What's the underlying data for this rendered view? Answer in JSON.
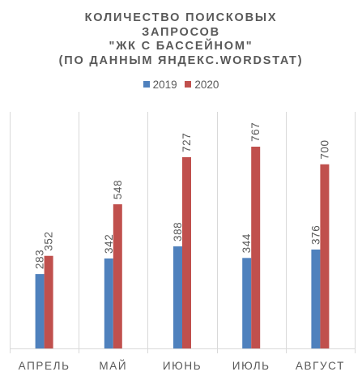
{
  "chart_data": {
    "type": "bar",
    "title_lines": [
      "КОЛИЧЕСТВО ПОИСКОВЫХ",
      "ЗАПРОСОВ",
      "\"ЖК С БАССЕЙНОМ\"",
      "(ПО ДАННЫМ ЯНДЕКС.WORDSTAT)"
    ],
    "categories": [
      "АПРЕЛЬ",
      "МАЙ",
      "ИЮНЬ",
      "ИЮЛЬ",
      "АВГУСТ"
    ],
    "series": [
      {
        "name": "2019",
        "color": "#4f81bd",
        "values": [
          283,
          342,
          388,
          344,
          376
        ]
      },
      {
        "name": "2020",
        "color": "#c0504d",
        "values": [
          352,
          548,
          727,
          767,
          700
        ]
      }
    ],
    "ylim": [
      0,
      900
    ],
    "grid": "vertical category separators",
    "legend_position": "top",
    "data_labels": "rotated above bars"
  }
}
